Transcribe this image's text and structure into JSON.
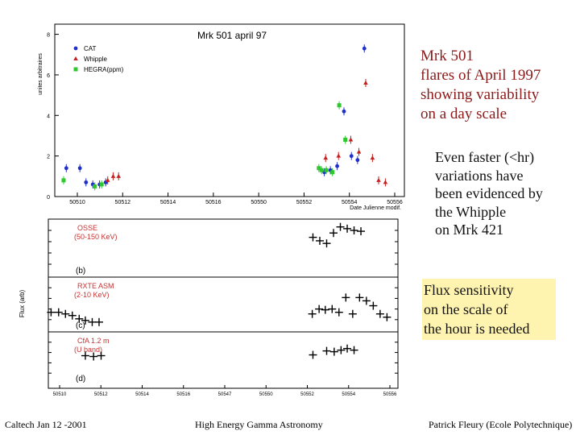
{
  "slide": {
    "heading_red": [
      "Mrk 501",
      "flares of April 1997",
      "showing variability",
      "on a day scale"
    ],
    "heading_black": [
      "Even faster (<hr)",
      "variations have",
      "been evidenced by",
      "the Whipple",
      "on Mrk 421"
    ],
    "heading_box": [
      "Flux sensitivity",
      "on the scale of",
      "the hour is needed"
    ],
    "box_color": "#fff3b0",
    "footer": {
      "left": "Caltech Jan 12 -2001",
      "center": "High Energy Gamma Astronomy",
      "right": "Patrick Fleury (Ecole Polytechnique)"
    }
  },
  "chart_data": [
    {
      "type": "scatter",
      "title": "Mrk 501    april 97",
      "xlabel": "Date Julienne modif.",
      "ylabel": "unites arbitraires",
      "x_ticks": [
        "50510",
        "50512",
        "50514",
        "50516",
        "50550",
        "50552",
        "50554",
        "50556"
      ],
      "y_ticks": [
        "0",
        "2",
        "4",
        "6",
        "8"
      ],
      "xlim": [
        50509,
        50560.5
      ],
      "ylim": [
        0,
        8.5
      ],
      "legend_position": "top-left",
      "series": [
        {
          "name": "CAT",
          "color": "#1f2fc8",
          "marker": "circle",
          "points": [
            [
              50510.7,
              1.4
            ],
            [
              50512.7,
              1.4
            ],
            [
              50513.6,
              0.7
            ],
            [
              50514.6,
              0.6
            ],
            [
              50515.6,
              0.6
            ],
            [
              50516.5,
              0.7
            ],
            [
              50548.7,
              1.2
            ],
            [
              50549.6,
              1.3
            ],
            [
              50550.6,
              1.5
            ],
            [
              50551.6,
              4.2
            ],
            [
              50552.7,
              2.0
            ],
            [
              50553.6,
              1.8
            ],
            [
              50554.6,
              7.3
            ]
          ]
        },
        {
          "name": "Whipple",
          "color": "#c81e1e",
          "marker": "triangle",
          "points": [
            [
              50516.8,
              0.8
            ],
            [
              50517.6,
              1.0
            ],
            [
              50518.4,
              1.0
            ],
            [
              50548.9,
              1.9
            ],
            [
              50550.8,
              2.0
            ],
            [
              50552.6,
              2.8
            ],
            [
              50553.8,
              2.2
            ],
            [
              50554.8,
              5.6
            ],
            [
              50555.8,
              1.9
            ],
            [
              50556.7,
              0.8
            ],
            [
              50557.7,
              0.7
            ]
          ]
        },
        {
          "name": "HEGRA(ppm)",
          "color": "#2ec82e",
          "marker": "square",
          "points": [
            [
              50510.3,
              0.8
            ],
            [
              50514.9,
              0.5
            ],
            [
              50515.9,
              0.6
            ],
            [
              50547.9,
              1.4
            ],
            [
              50548.3,
              1.3
            ],
            [
              50549.0,
              1.3
            ],
            [
              50549.9,
              1.2
            ],
            [
              50550.9,
              4.5
            ],
            [
              50551.8,
              2.8
            ]
          ]
        }
      ]
    },
    {
      "type": "scatter",
      "ylabel": "Flux (arb)",
      "x_ticks": [
        "50510",
        "50512",
        "50514",
        "50516",
        "50547",
        "50550",
        "50552",
        "50554",
        "50556"
      ],
      "panels": [
        {
          "label": "OSSE",
          "label2": "(50-150 KeV)",
          "tag": "(b)",
          "points": [
            [
              50547.6,
              4.4
            ],
            [
              50548.6,
              4.0
            ],
            [
              50549.6,
              3.7
            ],
            [
              50550.6,
              4.9
            ],
            [
              50551.6,
              5.6
            ],
            [
              50552.6,
              5.4
            ],
            [
              50553.6,
              5.2
            ],
            [
              50554.6,
              5.1
            ]
          ]
        },
        {
          "label": "RXTE ASM",
          "label2": "(2-10 KeV)",
          "tag": "(c)",
          "points": [
            [
              50509.4,
              2.2
            ],
            [
              50510.5,
              2.2
            ],
            [
              50511.5,
              2.0
            ],
            [
              50512.5,
              1.8
            ],
            [
              50513.5,
              1.4
            ],
            [
              50514.4,
              1.2
            ],
            [
              50515.4,
              1.0
            ],
            [
              50516.4,
              1.0
            ],
            [
              50547.5,
              2.0
            ],
            [
              50548.5,
              2.6
            ],
            [
              50549.4,
              2.5
            ],
            [
              50550.4,
              2.6
            ],
            [
              50551.4,
              2.2
            ],
            [
              50552.4,
              4.0
            ],
            [
              50553.4,
              2.0
            ],
            [
              50554.4,
              4.0
            ],
            [
              50555.4,
              3.6
            ],
            [
              50556.4,
              3.0
            ],
            [
              50557.4,
              2.0
            ],
            [
              50558.4,
              1.6
            ]
          ]
        },
        {
          "label": "CfA 1.2 m",
          "label2": "(U band)",
          "tag": "(d)",
          "points": [
            [
              50514.4,
              3.5
            ],
            [
              50515.6,
              3.4
            ],
            [
              50516.7,
              3.5
            ],
            [
              50547.6,
              3.6
            ],
            [
              50549.6,
              4.1
            ],
            [
              50550.7,
              4.0
            ],
            [
              50551.7,
              4.2
            ],
            [
              50552.6,
              4.4
            ],
            [
              50553.6,
              4.2
            ]
          ]
        }
      ]
    }
  ]
}
